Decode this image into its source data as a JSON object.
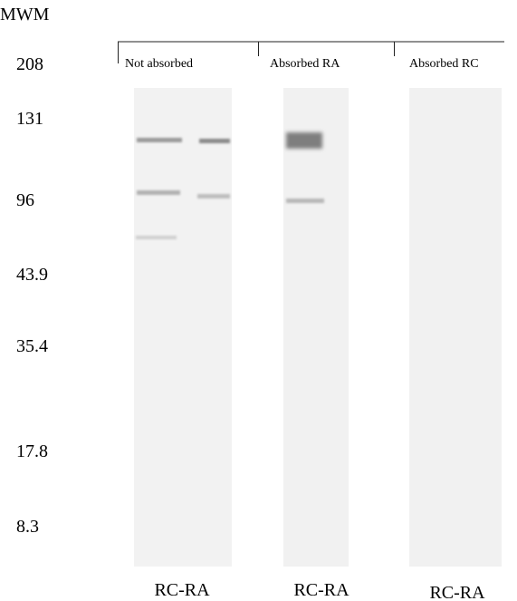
{
  "mwm_label": "MWM",
  "markers": [
    "208",
    "131",
    "96",
    "43.9",
    "35.4",
    "17.8",
    "8.3"
  ],
  "lanes": [
    {
      "header": "Not absorbed",
      "footer": "RC-RA"
    },
    {
      "header": "Absorbed RA",
      "footer": "RC-RA"
    },
    {
      "header": "Absorbed RC",
      "footer": "RC-RA"
    }
  ]
}
